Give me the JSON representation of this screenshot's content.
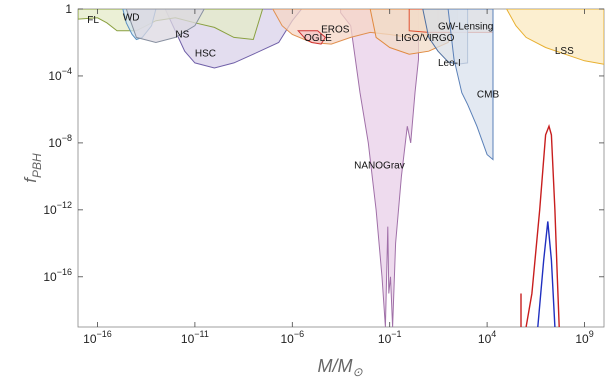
{
  "chart_data": {
    "type": "area",
    "xlabel": "M/M⊙",
    "ylabel": "fPBH",
    "x_scale": "log",
    "y_scale": "log",
    "xlim": [
      1e-17,
      10000000000.0
    ],
    "ylim": [
      1e-19,
      1
    ],
    "x_ticks": [
      {
        "value": 1e-16,
        "base": "10",
        "exp": "−16"
      },
      {
        "value": 1e-11,
        "base": "10",
        "exp": "−11"
      },
      {
        "value": 1e-06,
        "base": "10",
        "exp": "−6"
      },
      {
        "value": 0.1,
        "base": "10",
        "exp": "−1"
      },
      {
        "value": 10000.0,
        "base": "10",
        "exp": "4"
      },
      {
        "value": 1000000000.0,
        "base": "10",
        "exp": "9"
      }
    ],
    "y_ticks": [
      {
        "value": 1,
        "base": "1",
        "exp": ""
      },
      {
        "value": 0.0001,
        "base": "10",
        "exp": "−4"
      },
      {
        "value": 1e-08,
        "base": "10",
        "exp": "−8"
      },
      {
        "value": 1e-12,
        "base": "10",
        "exp": "−12"
      },
      {
        "value": 1e-16,
        "base": "10",
        "exp": "−16"
      }
    ],
    "constraints": [
      {
        "name": "NANOGrav",
        "fill": "#e8cfe8",
        "stroke": "#a070a8",
        "boundary": [
          [
            0.0003,
            1
          ],
          [
            0.0003,
            0.6
          ],
          [
            0.001,
            0.1
          ],
          [
            0.003,
            1e-05
          ],
          [
            0.008,
            1e-08
          ],
          [
            0.02,
            1e-12
          ],
          [
            0.04,
            1e-16
          ],
          [
            0.06,
            1e-19
          ],
          [
            0.08,
            1e-13
          ],
          [
            0.09,
            1e-17
          ],
          [
            0.11,
            1e-16
          ],
          [
            0.14,
            1e-19
          ],
          [
            0.2,
            1e-14
          ],
          [
            0.4,
            1e-10
          ],
          [
            0.8,
            1e-07
          ],
          [
            1.2,
            1e-08
          ],
          [
            2,
            1e-05
          ],
          [
            3,
            0.001
          ],
          [
            3,
            1
          ]
        ]
      },
      {
        "name": "HSC",
        "fill": "#d9d2ea",
        "stroke": "#7060a8",
        "boundary": [
          [
            3e-13,
            1
          ],
          [
            3e-12,
            0.003
          ],
          [
            1e-11,
            0.0006
          ],
          [
            1e-10,
            0.0003
          ],
          [
            1e-09,
            0.0006
          ],
          [
            1e-08,
            0.002
          ],
          [
            2e-07,
            0.01
          ],
          [
            1e-06,
            0.2
          ],
          [
            3e-06,
            1
          ]
        ]
      },
      {
        "name": "FL",
        "fill": "#e4ebc8",
        "stroke": "#8aa040",
        "boundary": [
          [
            1e-17,
            1
          ],
          [
            1e-17,
            0.25
          ],
          [
            1e-16,
            0.3
          ],
          [
            3e-16,
            0.15
          ],
          [
            1e-15,
            0.05
          ],
          [
            1e-14,
            0.05
          ],
          [
            1e-13,
            0.2
          ],
          [
            1e-12,
            0.3
          ],
          [
            1e-11,
            0.15
          ],
          [
            1e-10,
            0.08
          ],
          [
            1e-09,
            0.02
          ],
          [
            1e-08,
            0.015
          ],
          [
            3e-08,
            1
          ]
        ]
      },
      {
        "name": "WD",
        "fill": "#d2e4f0",
        "stroke": "#5a90c0",
        "boundary": [
          [
            2e-15,
            1
          ],
          [
            3e-15,
            0.15
          ],
          [
            6e-15,
            0.03
          ],
          [
            1e-14,
            0.015
          ],
          [
            2e-14,
            0.02
          ],
          [
            6e-14,
            0.1
          ],
          [
            1e-13,
            1
          ]
        ]
      },
      {
        "name": "EROS",
        "fill": "#f6d6c6",
        "stroke": "#e09050",
        "boundary": [
          [
            1e-07,
            1
          ],
          [
            3e-07,
            0.1
          ],
          [
            1e-06,
            0.03
          ],
          [
            1e-05,
            0.01
          ],
          [
            0.0001,
            0.008
          ],
          [
            0.001,
            0.02
          ],
          [
            0.01,
            0.04
          ],
          [
            0.1,
            0.03
          ],
          [
            1,
            0.02
          ],
          [
            10,
            0.03
          ],
          [
            30,
            0.1
          ],
          [
            30,
            1
          ]
        ]
      },
      {
        "name": "OGLE",
        "fill": "#f5c6c6",
        "stroke": "#d03030",
        "boundary": [
          [
            2e-06,
            0.05
          ],
          [
            5e-06,
            0.015
          ],
          [
            1e-05,
            0.01
          ],
          [
            3e-05,
            0.008
          ],
          [
            5e-05,
            0.02
          ],
          [
            2e-05,
            0.05
          ]
        ]
      },
      {
        "name": "LIGO/VIRGO",
        "fill": "#f2dcc8",
        "stroke": "#e08a40",
        "boundary": [
          [
            0.01,
            1
          ],
          [
            0.02,
            0.02
          ],
          [
            0.1,
            0.005
          ],
          [
            1,
            0.002
          ],
          [
            10,
            0.003
          ],
          [
            100,
            0.01
          ],
          [
            200,
            0.05
          ],
          [
            300,
            0.2
          ],
          [
            300,
            1
          ]
        ]
      },
      {
        "name": "GW-Lensing",
        "fill": "#f2dcc8",
        "stroke": "#e05030",
        "boundary": [
          [
            1,
            1
          ],
          [
            1,
            0.05
          ],
          [
            10,
            0.04
          ],
          [
            100,
            0.04
          ],
          [
            1000,
            0.04
          ],
          [
            20000.0,
            0.04
          ],
          [
            20000.0,
            1
          ]
        ]
      },
      {
        "name": "Leo-I",
        "fill": "#d9dfe6",
        "stroke": "#5070a0",
        "boundary": [
          [
            5,
            1
          ],
          [
            10,
            0.02
          ],
          [
            30,
            0.003
          ],
          [
            100,
            0.0007
          ],
          [
            300,
            0.0005
          ],
          [
            1000,
            0.0006
          ],
          [
            1000,
            1
          ]
        ]
      },
      {
        "name": "CMB",
        "fill": "#d9e2ee",
        "stroke": "#5a80b8",
        "boundary": [
          [
            100,
            1
          ],
          [
            200,
            0.001
          ],
          [
            500,
            1e-05
          ],
          [
            1000,
            2e-06
          ],
          [
            3000,
            1e-07
          ],
          [
            10000.0,
            2e-09
          ],
          [
            20000.0,
            1e-09
          ],
          [
            20000.0,
            1
          ]
        ]
      },
      {
        "name": "LSS",
        "fill": "#fbeac0",
        "stroke": "#e8b030",
        "boundary": [
          [
            100000.0,
            1
          ],
          [
            300000.0,
            0.1
          ],
          [
            1000000.0,
            0.02
          ],
          [
            10000000.0,
            0.005
          ],
          [
            100000000.0,
            0.002
          ],
          [
            1000000000.0,
            0.0008
          ],
          [
            10000000000.0,
            0.0005
          ],
          [
            10000000000.0,
            1
          ]
        ]
      },
      {
        "name": "NS",
        "fill": "#dcd8e2",
        "stroke": "#8890a0",
        "boundary": [
          [
            3e-15,
            1
          ],
          [
            1e-14,
            0.02
          ],
          [
            1e-13,
            0.01
          ],
          [
            1e-12,
            0.02
          ],
          [
            1e-11,
            0.1
          ],
          [
            3e-11,
            1
          ]
        ]
      }
    ],
    "region_labels": [
      {
        "text": "FL",
        "x": 3e-17,
        "y": 0.15
      },
      {
        "text": "WD",
        "x": 2e-15,
        "y": 0.2
      },
      {
        "text": "NS",
        "x": 1e-12,
        "y": 0.02
      },
      {
        "text": "HSC",
        "x": 1e-11,
        "y": 0.0015
      },
      {
        "text": "OGLE",
        "x": 4e-06,
        "y": 0.012
      },
      {
        "text": "EROS",
        "x": 3e-05,
        "y": 0.04
      },
      {
        "text": "LIGO/VIRGO",
        "x": 0.2,
        "y": 0.012
      },
      {
        "text": "GW-Lensing",
        "x": 30,
        "y": 0.06
      },
      {
        "text": "Leo-I",
        "x": 30,
        "y": 0.0004
      },
      {
        "text": "CMB",
        "x": 3000,
        "y": 5e-06
      },
      {
        "text": "LSS",
        "x": 30000000.0,
        "y": 0.002
      },
      {
        "text": "NANOGrav",
        "x": 0.0015,
        "y": 3e-10
      }
    ],
    "series": [
      {
        "color": "#c81e1e",
        "points": [
          [
            1000000.0,
            1e-19
          ],
          [
            2000000.0,
            1e-17
          ],
          [
            5000000.0,
            1e-12
          ],
          [
            10000000.0,
            3e-08
          ],
          [
            15000000.0,
            1e-07
          ],
          [
            20000000.0,
            3e-08
          ],
          [
            30000000.0,
            1e-12
          ],
          [
            40000000.0,
            1e-16
          ],
          [
            50000000.0,
            1e-19
          ]
        ]
      },
      {
        "color": "#c81e1e",
        "points": [
          [
            550000.0,
            1e-19
          ],
          [
            550000.0,
            1e-17
          ]
        ]
      },
      {
        "color": "#2030c0",
        "points": [
          [
            4000000.0,
            1e-19
          ],
          [
            8000000.0,
            1e-15
          ],
          [
            13000000.0,
            2e-13
          ],
          [
            20000000.0,
            1e-15
          ],
          [
            30000000.0,
            1e-19
          ]
        ]
      }
    ]
  }
}
